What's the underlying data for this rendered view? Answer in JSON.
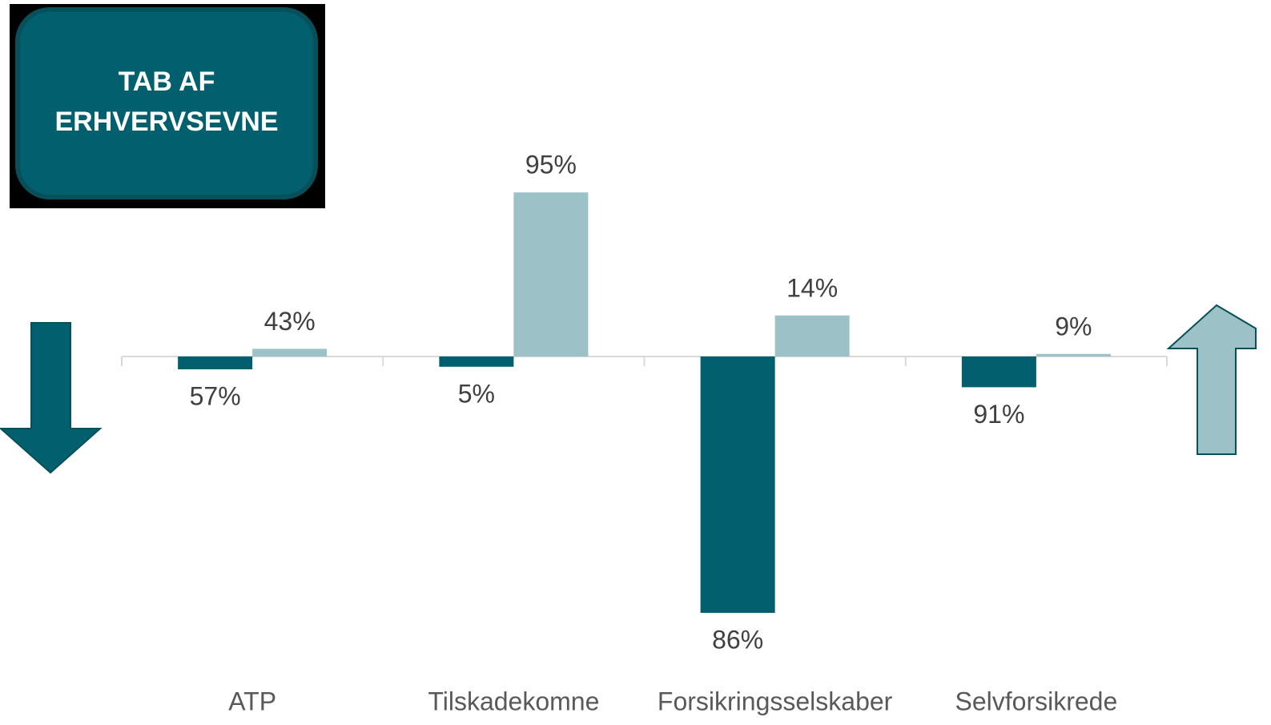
{
  "chart_data": {
    "type": "bar",
    "title": [
      "TAB AF",
      "ERHVERVSEVNE"
    ],
    "categories": [
      "ATP",
      "Tilskadekomne",
      "Forsikringsselskaber",
      "Selvforsikrede"
    ],
    "series": [
      {
        "color": "#02606e",
        "values": [
          -5,
          -4,
          -100,
          -12
        ],
        "value_labels": [
          "57%",
          "5%",
          "86%",
          "91%"
        ]
      },
      {
        "color": "#9cc1c6",
        "values": [
          3,
          64,
          16,
          1
        ],
        "value_labels": [
          "43%",
          "95%",
          "14%",
          "9%"
        ]
      }
    ],
    "ylim": [
      -110,
      80
    ]
  }
}
